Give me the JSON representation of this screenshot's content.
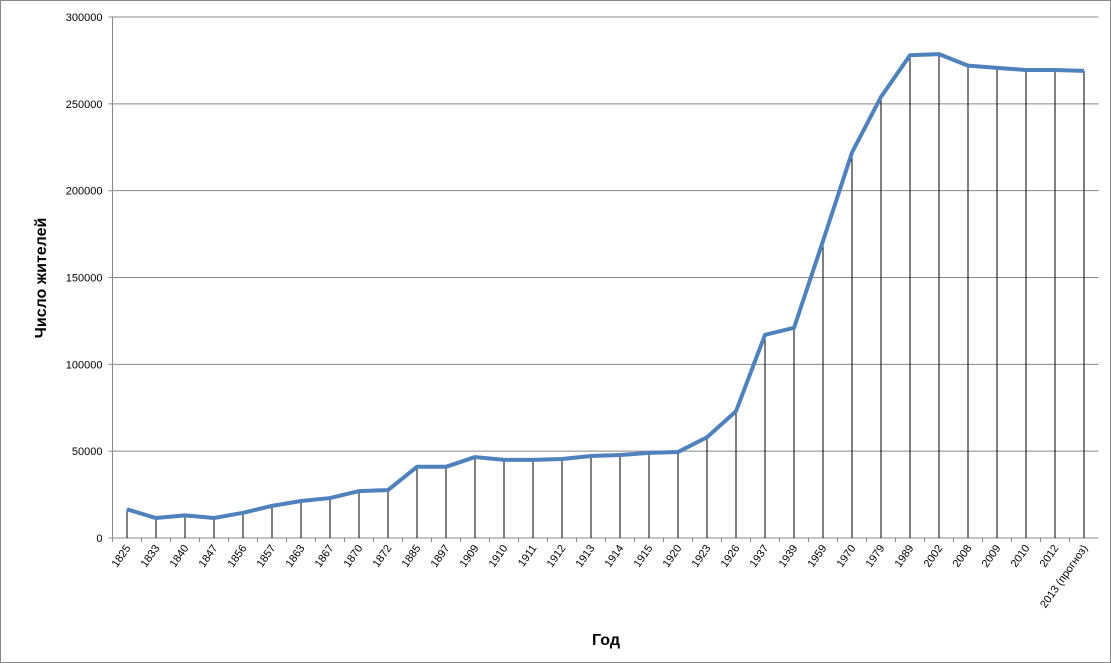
{
  "chart_data": {
    "type": "line",
    "x_label": "Год",
    "y_label": "Число жителей",
    "categories": [
      "1825",
      "1833",
      "1840",
      "1847",
      "1856",
      "1857",
      "1863",
      "1867",
      "1870",
      "1872",
      "1885",
      "1897",
      "1909",
      "1910",
      "1911",
      "1912",
      "1913",
      "1914",
      "1915",
      "1920",
      "1923",
      "1926",
      "1937",
      "1939",
      "1959",
      "1970",
      "1979",
      "1989",
      "2002",
      "2008",
      "2009",
      "2010",
      "2012",
      "2013 (прогноз)"
    ],
    "values": [
      16500,
      11500,
      13000,
      11500,
      14500,
      18500,
      21300,
      23000,
      27000,
      27600,
      41000,
      41000,
      46600,
      45000,
      45000,
      45500,
      47200,
      47800,
      49000,
      49500,
      58000,
      73000,
      117000,
      121000,
      171000,
      222000,
      254000,
      278000,
      278600,
      272000,
      270700,
      269500,
      269500,
      269000
    ],
    "color": "#4f81bd",
    "drop_lines": true,
    "ylim": [
      0,
      300000
    ],
    "yticks": [
      0,
      50000,
      100000,
      150000,
      200000,
      250000,
      300000
    ],
    "grid": true
  }
}
